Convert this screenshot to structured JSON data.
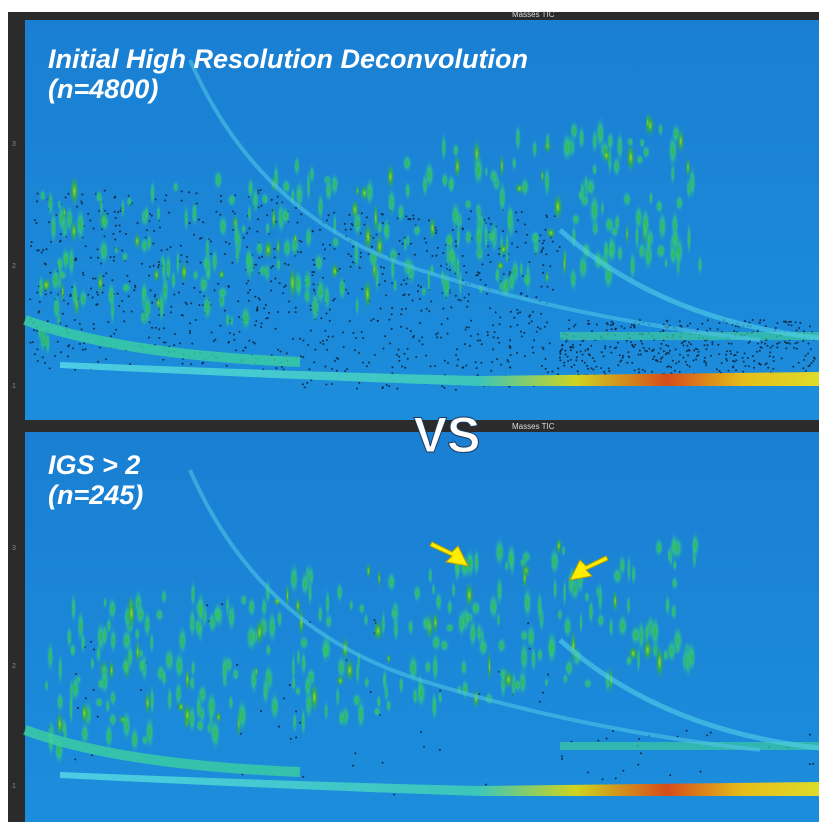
{
  "top_panel": {
    "header": "Masses  TIC",
    "title": "Initial High Resolution Deconvolution",
    "subtitle": "(n=4800)",
    "y_tick_labels": [
      "3",
      "2",
      "1"
    ]
  },
  "separator": "VS",
  "bottom_panel": {
    "header": "Masses  TIC",
    "title": "IGS > 2",
    "subtitle": "(n=245)",
    "y_tick_labels": [
      "3",
      "2",
      "1"
    ]
  }
}
